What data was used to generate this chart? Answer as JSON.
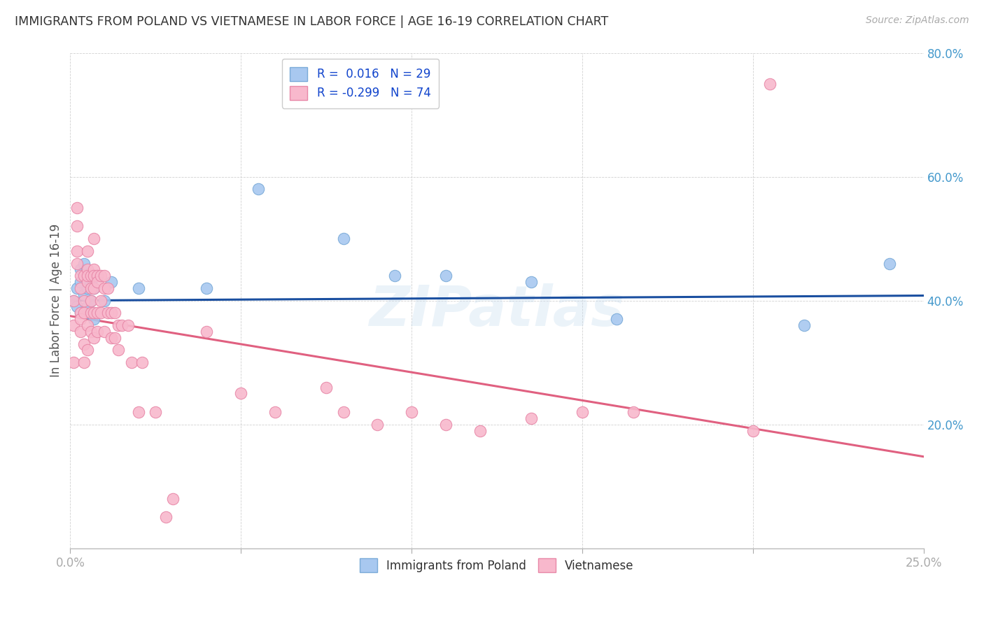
{
  "title": "IMMIGRANTS FROM POLAND VS VIETNAMESE IN LABOR FORCE | AGE 16-19 CORRELATION CHART",
  "source": "Source: ZipAtlas.com",
  "ylabel": "In Labor Force | Age 16-19",
  "xlim": [
    0.0,
    0.25
  ],
  "ylim": [
    0.0,
    0.8
  ],
  "xticks": [
    0.0,
    0.05,
    0.1,
    0.15,
    0.2,
    0.25
  ],
  "yticks": [
    0.2,
    0.4,
    0.6,
    0.8
  ],
  "xticklabels_show": [
    "0.0%",
    "25.0%"
  ],
  "xticklabels_pos": [
    0.0,
    0.25
  ],
  "yticklabels": [
    "20.0%",
    "40.0%",
    "60.0%",
    "80.0%"
  ],
  "poland_color": "#a8c8f0",
  "polish_edge_color": "#7aaad8",
  "vietnamese_color": "#f8b8cc",
  "vietnamese_edge_color": "#e888a8",
  "poland_R": 0.016,
  "poland_N": 29,
  "vietnamese_R": -0.299,
  "vietnamese_N": 74,
  "poland_line_color": "#1a4fa0",
  "vietnamese_line_color": "#e06080",
  "watermark": "ZIPatlas",
  "poland_trend_x": [
    0.0,
    0.25
  ],
  "poland_trend_y": [
    0.4,
    0.408
  ],
  "vietnamese_trend_x": [
    0.0,
    0.25
  ],
  "vietnamese_trend_y": [
    0.375,
    0.148
  ],
  "poland_x": [
    0.001,
    0.002,
    0.002,
    0.003,
    0.003,
    0.003,
    0.004,
    0.004,
    0.004,
    0.005,
    0.005,
    0.005,
    0.006,
    0.006,
    0.007,
    0.007,
    0.008,
    0.01,
    0.012,
    0.02,
    0.04,
    0.055,
    0.08,
    0.095,
    0.11,
    0.135,
    0.16,
    0.215,
    0.24
  ],
  "poland_y": [
    0.4,
    0.39,
    0.42,
    0.43,
    0.45,
    0.38,
    0.41,
    0.44,
    0.46,
    0.42,
    0.38,
    0.39,
    0.43,
    0.4,
    0.37,
    0.42,
    0.44,
    0.4,
    0.43,
    0.42,
    0.42,
    0.58,
    0.5,
    0.44,
    0.44,
    0.43,
    0.37,
    0.36,
    0.46
  ],
  "vietnamese_x": [
    0.001,
    0.001,
    0.001,
    0.002,
    0.002,
    0.002,
    0.002,
    0.003,
    0.003,
    0.003,
    0.003,
    0.003,
    0.004,
    0.004,
    0.004,
    0.004,
    0.004,
    0.005,
    0.005,
    0.005,
    0.005,
    0.005,
    0.005,
    0.006,
    0.006,
    0.006,
    0.006,
    0.006,
    0.007,
    0.007,
    0.007,
    0.007,
    0.007,
    0.007,
    0.008,
    0.008,
    0.008,
    0.008,
    0.009,
    0.009,
    0.009,
    0.01,
    0.01,
    0.01,
    0.011,
    0.011,
    0.012,
    0.012,
    0.013,
    0.013,
    0.014,
    0.014,
    0.015,
    0.017,
    0.018,
    0.02,
    0.021,
    0.025,
    0.028,
    0.03,
    0.04,
    0.05,
    0.06,
    0.075,
    0.08,
    0.09,
    0.1,
    0.11,
    0.12,
    0.135,
    0.15,
    0.165,
    0.2,
    0.205
  ],
  "vietnamese_y": [
    0.36,
    0.4,
    0.3,
    0.52,
    0.55,
    0.48,
    0.46,
    0.38,
    0.44,
    0.42,
    0.35,
    0.37,
    0.38,
    0.44,
    0.4,
    0.33,
    0.3,
    0.48,
    0.45,
    0.43,
    0.44,
    0.36,
    0.32,
    0.44,
    0.42,
    0.4,
    0.38,
    0.35,
    0.5,
    0.45,
    0.44,
    0.42,
    0.38,
    0.34,
    0.44,
    0.43,
    0.38,
    0.35,
    0.44,
    0.4,
    0.38,
    0.44,
    0.42,
    0.35,
    0.42,
    0.38,
    0.38,
    0.34,
    0.38,
    0.34,
    0.36,
    0.32,
    0.36,
    0.36,
    0.3,
    0.22,
    0.3,
    0.22,
    0.05,
    0.08,
    0.35,
    0.25,
    0.22,
    0.26,
    0.22,
    0.2,
    0.22,
    0.2,
    0.19,
    0.21,
    0.22,
    0.22,
    0.19,
    0.75
  ]
}
